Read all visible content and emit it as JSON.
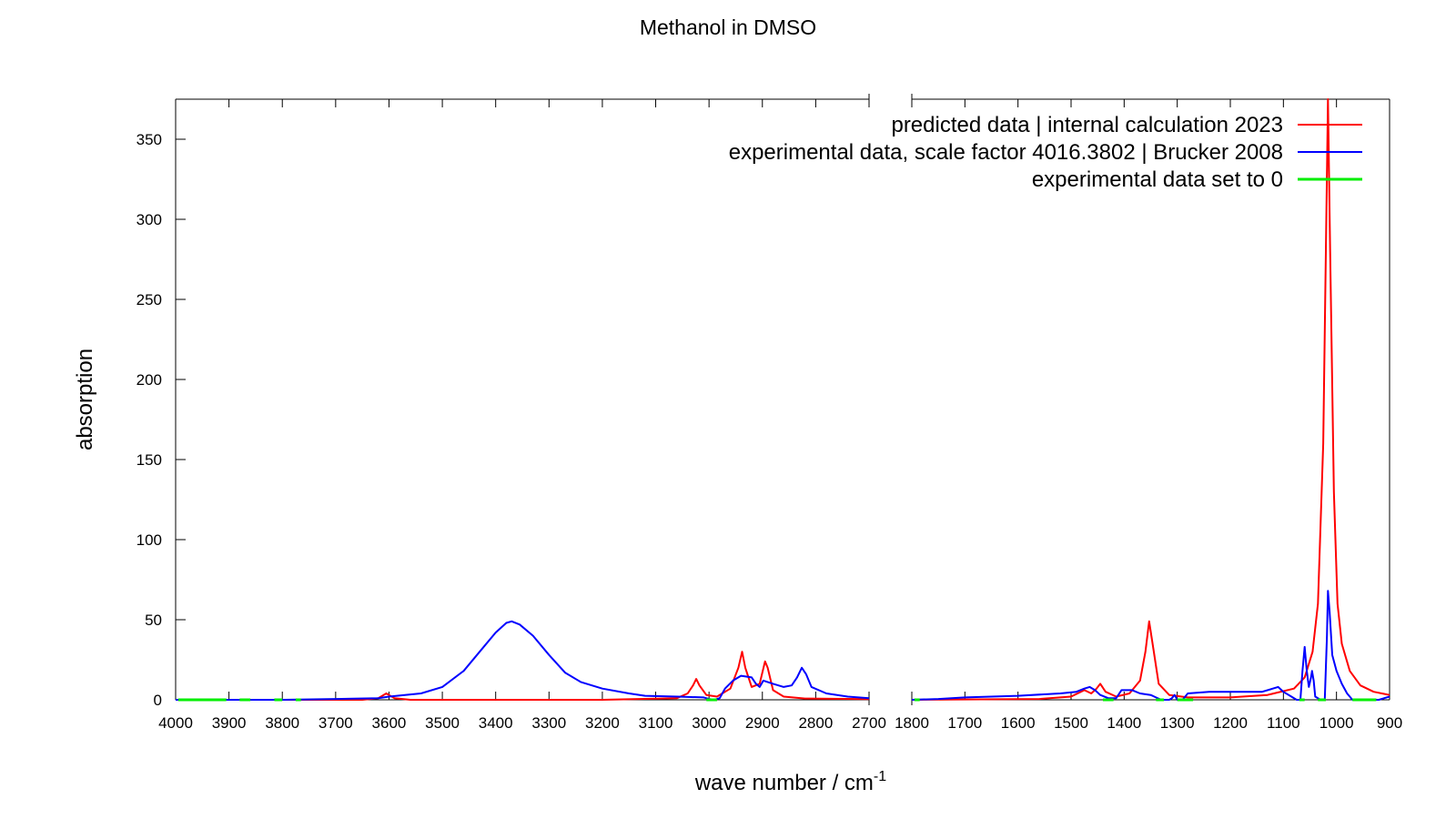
{
  "chart_data": {
    "type": "line",
    "title": "Methanol in DMSO",
    "xlabel": "wave number / cm",
    "xlabel_superscript": "-1",
    "ylabel": "absorption",
    "ylim": [
      0,
      375
    ],
    "y_ticks": [
      0,
      50,
      100,
      150,
      200,
      250,
      300,
      350
    ],
    "x_axis_reversed": true,
    "x_axis_break": true,
    "panels": [
      {
        "xlim": [
          4000,
          2700
        ],
        "x_ticks": [
          4000,
          3900,
          3800,
          3700,
          3600,
          3500,
          3400,
          3300,
          3200,
          3100,
          3000,
          2900,
          2800,
          2700
        ]
      },
      {
        "xlim": [
          1800,
          900
        ],
        "x_ticks": [
          1800,
          1700,
          1600,
          1500,
          1400,
          1300,
          1200,
          1100,
          1000,
          900
        ]
      }
    ],
    "legend_position": "top-right",
    "series": [
      {
        "name": "predicted data | internal calculation 2023",
        "color": "#ff0000",
        "points": [
          [
            4000,
            0
          ],
          [
            3650,
            0
          ],
          [
            3620,
            1
          ],
          [
            3605,
            4
          ],
          [
            3590,
            1
          ],
          [
            3560,
            0
          ],
          [
            3200,
            0
          ],
          [
            3060,
            1
          ],
          [
            3040,
            4
          ],
          [
            3030,
            9
          ],
          [
            3024,
            13
          ],
          [
            3018,
            9
          ],
          [
            3005,
            3
          ],
          [
            2985,
            2
          ],
          [
            2960,
            7
          ],
          [
            2945,
            20
          ],
          [
            2938,
            30
          ],
          [
            2932,
            20
          ],
          [
            2920,
            8
          ],
          [
            2905,
            10
          ],
          [
            2895,
            24
          ],
          [
            2890,
            20
          ],
          [
            2880,
            6
          ],
          [
            2860,
            2
          ],
          [
            2820,
            0.8
          ],
          [
            2700,
            0.4
          ],
          [
            1800,
            0
          ],
          [
            1560,
            0.5
          ],
          [
            1500,
            2
          ],
          [
            1475,
            6
          ],
          [
            1462,
            4
          ],
          [
            1452,
            7
          ],
          [
            1445,
            10
          ],
          [
            1435,
            5
          ],
          [
            1415,
            2
          ],
          [
            1390,
            4
          ],
          [
            1370,
            12
          ],
          [
            1360,
            30
          ],
          [
            1353,
            49
          ],
          [
            1345,
            32
          ],
          [
            1335,
            10
          ],
          [
            1315,
            3
          ],
          [
            1280,
            1.5
          ],
          [
            1200,
            1.5
          ],
          [
            1130,
            3
          ],
          [
            1080,
            7
          ],
          [
            1060,
            14
          ],
          [
            1045,
            30
          ],
          [
            1035,
            60
          ],
          [
            1025,
            160
          ],
          [
            1020,
            280
          ],
          [
            1016,
            375
          ],
          [
            1012,
            280
          ],
          [
            1005,
            130
          ],
          [
            998,
            60
          ],
          [
            990,
            35
          ],
          [
            975,
            18
          ],
          [
            955,
            9
          ],
          [
            930,
            5
          ],
          [
            900,
            3
          ]
        ]
      },
      {
        "name": "experimental data, scale factor 4016.3802 | Brucker 2008",
        "color": "#0000ff",
        "points": [
          [
            4000,
            0
          ],
          [
            3800,
            0
          ],
          [
            3700,
            0.5
          ],
          [
            3620,
            1
          ],
          [
            3600,
            2
          ],
          [
            3570,
            3
          ],
          [
            3540,
            4
          ],
          [
            3500,
            8
          ],
          [
            3460,
            18
          ],
          [
            3430,
            30
          ],
          [
            3400,
            42
          ],
          [
            3380,
            48
          ],
          [
            3370,
            49
          ],
          [
            3355,
            47
          ],
          [
            3330,
            40
          ],
          [
            3300,
            28
          ],
          [
            3270,
            17
          ],
          [
            3240,
            11
          ],
          [
            3200,
            7
          ],
          [
            3150,
            4
          ],
          [
            3120,
            2.5
          ],
          [
            3060,
            2
          ],
          [
            3010,
            1.5
          ],
          [
            3000,
            0.5
          ],
          [
            2990,
            0
          ],
          [
            2980,
            1
          ],
          [
            2970,
            7
          ],
          [
            2955,
            12
          ],
          [
            2940,
            15
          ],
          [
            2920,
            14
          ],
          [
            2912,
            10
          ],
          [
            2905,
            8
          ],
          [
            2898,
            12
          ],
          [
            2880,
            10
          ],
          [
            2860,
            8
          ],
          [
            2845,
            9
          ],
          [
            2835,
            14
          ],
          [
            2826,
            20
          ],
          [
            2818,
            16
          ],
          [
            2808,
            8
          ],
          [
            2780,
            4
          ],
          [
            2740,
            2
          ],
          [
            2700,
            1
          ],
          [
            1800,
            0
          ],
          [
            1750,
            0.5
          ],
          [
            1700,
            1.5
          ],
          [
            1600,
            2.5
          ],
          [
            1520,
            4
          ],
          [
            1490,
            5
          ],
          [
            1475,
            7
          ],
          [
            1465,
            8
          ],
          [
            1455,
            6
          ],
          [
            1445,
            3
          ],
          [
            1430,
            1
          ],
          [
            1415,
            1
          ],
          [
            1405,
            6
          ],
          [
            1385,
            6
          ],
          [
            1370,
            4
          ],
          [
            1350,
            3
          ],
          [
            1340,
            1.5
          ],
          [
            1330,
            0
          ],
          [
            1315,
            0
          ],
          [
            1310,
            1
          ],
          [
            1305,
            3
          ],
          [
            1300,
            0
          ],
          [
            1290,
            0
          ],
          [
            1280,
            4
          ],
          [
            1240,
            5
          ],
          [
            1180,
            5
          ],
          [
            1140,
            5
          ],
          [
            1120,
            7
          ],
          [
            1110,
            8
          ],
          [
            1100,
            5
          ],
          [
            1085,
            2
          ],
          [
            1075,
            0
          ],
          [
            1068,
            0
          ],
          [
            1064,
            18
          ],
          [
            1060,
            33
          ],
          [
            1056,
            18
          ],
          [
            1052,
            8
          ],
          [
            1048,
            14
          ],
          [
            1046,
            18
          ],
          [
            1043,
            12
          ],
          [
            1040,
            2
          ],
          [
            1030,
            0
          ],
          [
            1022,
            0
          ],
          [
            1018,
            40
          ],
          [
            1016,
            68
          ],
          [
            1013,
            55
          ],
          [
            1008,
            28
          ],
          [
            1000,
            18
          ],
          [
            990,
            10
          ],
          [
            980,
            4
          ],
          [
            970,
            0
          ],
          [
            920,
            0
          ],
          [
            910,
            1
          ],
          [
            900,
            2
          ]
        ]
      },
      {
        "name": "experimental data set to 0",
        "color": "#00ee00",
        "segments": [
          [
            3995,
            3905
          ],
          [
            3880,
            3860
          ],
          [
            3815,
            3800
          ],
          [
            3775,
            3765
          ],
          [
            3005,
            2985
          ],
          [
            1795,
            1785
          ],
          [
            1440,
            1420
          ],
          [
            1340,
            1325
          ],
          [
            1300,
            1270
          ],
          [
            1070,
            1060
          ],
          [
            1035,
            1020
          ],
          [
            970,
            925
          ]
        ]
      }
    ]
  }
}
